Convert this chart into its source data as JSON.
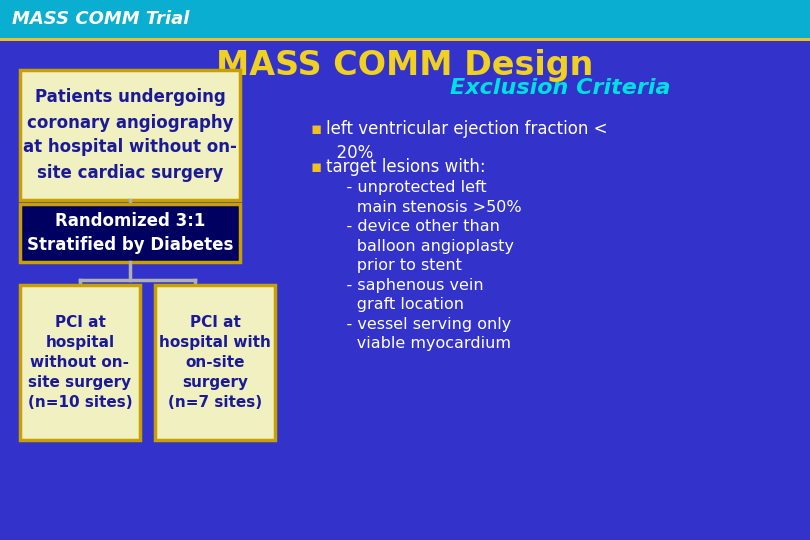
{
  "title": "MASS COMM Design",
  "header_text": "MASS COMM Trial",
  "header_bg": "#0aaed0",
  "header_line_color": "#f0c020",
  "main_bg": "#3333cc",
  "title_color": "#f0d020",
  "title_fontsize": 24,
  "header_fontsize": 13,
  "box1_text": "Patients undergoing\ncoronary angiography\nat hospital without on-\nsite cardiac surgery",
  "box1_bg": "#f0f0c0",
  "box1_border": "#c8a000",
  "box1_text_color": "#1a1a99",
  "box2_text": "Randomized 3:1\nStratified by Diabetes",
  "box2_bg": "#000060",
  "box2_border": "#c8a000",
  "box2_text_color": "#ffffff",
  "box3_text": "PCI at\nhospital\nwithout on-\nsite surgery\n(n=10 sites)",
  "box3_bg": "#f0f0c0",
  "box3_border": "#c8a000",
  "box3_text_color": "#1a1a99",
  "box4_text": "PCI at\nhospital with\non-site\nsurgery\n(n=7 sites)",
  "box4_bg": "#f0f0c0",
  "box4_border": "#c8a000",
  "box4_text_color": "#1a1a99",
  "exclusion_title": "Exclusion Criteria",
  "exclusion_title_color": "#00e0e0",
  "exclusion_text_color": "#ffffff",
  "bullet_color": "#f0c020",
  "connector_color": "#b0b0b0",
  "fig_w": 8.1,
  "fig_h": 5.4,
  "dpi": 100
}
